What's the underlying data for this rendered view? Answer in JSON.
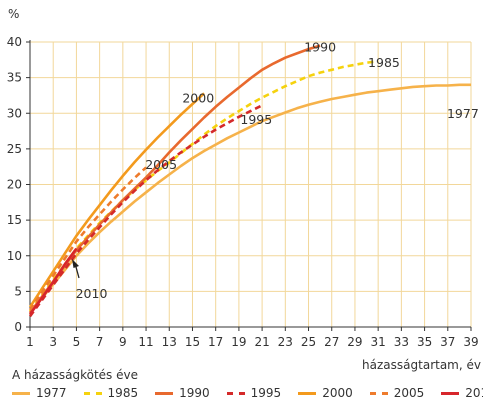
{
  "chart_data": {
    "type": "line",
    "unit_label": "%",
    "xlabel": "házasságtartam, év",
    "x_ticks": [
      "1",
      "3",
      "5",
      "7",
      "9",
      "11",
      "13",
      "15",
      "17",
      "19",
      "21",
      "23",
      "25",
      "27",
      "29",
      "31",
      "33",
      "35",
      "37",
      "39"
    ],
    "y_ticks": [
      "0",
      "5",
      "10",
      "15",
      "20",
      "25",
      "30",
      "35",
      "40"
    ],
    "xlim": [
      1,
      39
    ],
    "ylim": [
      0,
      40
    ],
    "grid": true,
    "legend_title": "A házasságkötés éve",
    "legend_position": "bottom",
    "series": [
      {
        "name": "1977",
        "color": "#f6b24a",
        "style": "solid",
        "x": [
          1,
          2,
          3,
          4,
          5,
          6,
          7,
          8,
          9,
          10,
          11,
          12,
          13,
          14,
          15,
          16,
          17,
          18,
          19,
          20,
          21,
          22,
          23,
          24,
          25,
          26,
          27,
          28,
          29,
          30,
          31,
          32,
          33,
          34,
          35,
          36,
          37,
          38,
          39
        ],
        "y": [
          2,
          4,
          6,
          8,
          10,
          11.7,
          13.3,
          14.8,
          16.2,
          17.6,
          18.9,
          20.2,
          21.4,
          22.6,
          23.7,
          24.7,
          25.6,
          26.5,
          27.3,
          28.1,
          28.9,
          29.5,
          30.1,
          30.7,
          31.2,
          31.6,
          32,
          32.3,
          32.6,
          32.9,
          33.1,
          33.3,
          33.5,
          33.7,
          33.8,
          33.9,
          33.9,
          34,
          34
        ]
      },
      {
        "name": "1985",
        "color": "#f5d20e",
        "style": "dashed",
        "x": [
          1,
          2,
          3,
          4,
          5,
          6,
          7,
          8,
          9,
          10,
          11,
          12,
          13,
          14,
          15,
          16,
          17,
          18,
          19,
          20,
          21,
          22,
          23,
          24,
          25,
          26,
          27,
          28,
          29,
          30,
          31
        ],
        "y": [
          2.2,
          4.4,
          6.6,
          8.8,
          11,
          12.8,
          14.6,
          16.2,
          17.8,
          19.2,
          20.6,
          21.9,
          23.1,
          24.4,
          25.7,
          27,
          28.2,
          29.3,
          30.3,
          31.3,
          32.2,
          33,
          33.8,
          34.5,
          35.2,
          35.7,
          36.1,
          36.5,
          36.8,
          37.1,
          37.3
        ]
      },
      {
        "name": "1990",
        "color": "#e8692e",
        "style": "solid",
        "x": [
          1,
          2,
          3,
          4,
          5,
          6,
          7,
          8,
          9,
          10,
          11,
          12,
          13,
          14,
          15,
          16,
          17,
          18,
          19,
          20,
          21,
          22,
          23,
          24,
          25,
          26
        ],
        "y": [
          2,
          4.2,
          6.4,
          8.6,
          10.8,
          12.6,
          14.4,
          16.1,
          17.8,
          19.4,
          21,
          22.7,
          24.5,
          26.2,
          27.8,
          29.4,
          30.9,
          32.3,
          33.6,
          34.9,
          36.1,
          37,
          37.8,
          38.4,
          39,
          39.5
        ]
      },
      {
        "name": "1995",
        "color": "#d42a2a",
        "style": "dashed",
        "x": [
          1,
          2,
          3,
          4,
          5,
          6,
          7,
          8,
          9,
          10,
          11,
          12,
          13,
          14,
          15,
          16,
          17,
          18,
          19,
          20,
          21
        ],
        "y": [
          1.5,
          3.7,
          5.9,
          8.1,
          10.3,
          12.2,
          14,
          15.8,
          17.5,
          19.1,
          20.6,
          22,
          23.3,
          24.5,
          25.6,
          26.7,
          27.7,
          28.6,
          29.5,
          30.3,
          31.1
        ]
      },
      {
        "name": "2000",
        "color": "#f39a1d",
        "style": "solid",
        "x": [
          1,
          2,
          3,
          4,
          5,
          6,
          7,
          8,
          9,
          10,
          11,
          12,
          13,
          14,
          15,
          16
        ],
        "y": [
          2.8,
          5.3,
          7.8,
          10.3,
          12.8,
          15,
          17.1,
          19.2,
          21.2,
          23.1,
          24.9,
          26.6,
          28.2,
          29.8,
          31.3,
          32.8
        ]
      },
      {
        "name": "2005",
        "color": "#ee7b2c",
        "style": "dashed",
        "x": [
          1,
          2,
          3,
          4,
          5,
          6,
          7,
          8,
          9,
          10,
          11
        ],
        "y": [
          2.4,
          4.8,
          7.2,
          9.6,
          12,
          14,
          15.8,
          17.6,
          19.3,
          20.9,
          22.4
        ]
      },
      {
        "name": "2010",
        "color": "#d7262c",
        "style": "solid",
        "x": [
          1,
          2,
          3,
          4,
          5
        ],
        "y": [
          1.8,
          4,
          6.3,
          8.8,
          11
        ]
      }
    ],
    "annotations": [
      {
        "text": "1990",
        "x": 26.0,
        "y": 38.7
      },
      {
        "text": "1985",
        "x": 31.5,
        "y": 36.5
      },
      {
        "text": "2000",
        "x": 15.5,
        "y": 31.5
      },
      {
        "text": "1995",
        "x": 20.5,
        "y": 28.5
      },
      {
        "text": "1977",
        "x": 38.3,
        "y": 29.3
      },
      {
        "text": "2005",
        "x": 12.3,
        "y": 22.2
      },
      {
        "text": "2010",
        "x": 6.3,
        "y": 4.1
      }
    ]
  }
}
